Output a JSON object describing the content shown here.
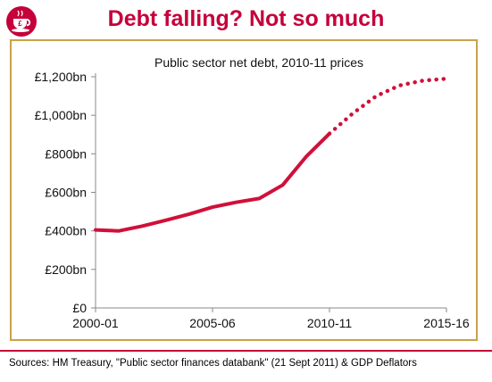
{
  "header": {
    "headline": "Debt falling? Not so much",
    "logo_icon": "teacup-logo-icon",
    "brand_color": "#c5003a"
  },
  "footer": {
    "source": "Sources: HM Treasury, \"Public sector finances databank\" (21 Sept 2011) & GDP Deflators"
  },
  "chart_data": {
    "type": "line",
    "title": "Public sector net debt, 2010-11 prices",
    "xlabel": "",
    "ylabel": "",
    "x_ticks": [
      "2000-01",
      "2005-06",
      "2010-11",
      "2015-16"
    ],
    "y_ticks": [
      "£0",
      "£200bn",
      "£400bn",
      "£600bn",
      "£800bn",
      "£1,000bn",
      "£1,200bn"
    ],
    "ylim": [
      0,
      1200
    ],
    "xlim": [
      "2000-01",
      "2015-16"
    ],
    "grid": false,
    "legend": "none",
    "line_color": "#d0103a",
    "frame_color": "#c9a24a",
    "series": [
      {
        "style": "solid",
        "x": [
          "2000-01",
          "2001-02",
          "2002-03",
          "2003-04",
          "2004-05",
          "2005-06",
          "2006-07",
          "2007-08",
          "2008-09",
          "2009-10",
          "2010-11"
        ],
        "values": [
          405,
          400,
          425,
          455,
          487,
          523,
          548,
          568,
          638,
          785,
          905
        ]
      },
      {
        "style": "dotted",
        "x": [
          "2010-11",
          "2011-12",
          "2012-13",
          "2013-14",
          "2014-15",
          "2015-16"
        ],
        "values": [
          905,
          1010,
          1100,
          1155,
          1180,
          1190
        ]
      }
    ]
  }
}
